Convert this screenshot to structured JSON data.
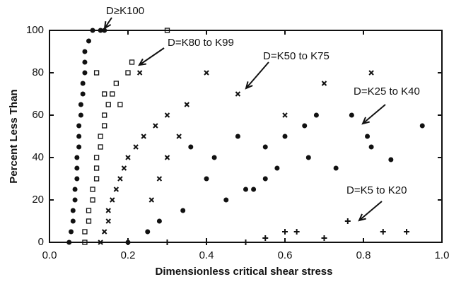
{
  "chart_data": {
    "type": "scatter",
    "xlabel": "Dimensionless critical shear stress",
    "ylabel": "Percent Less Than",
    "xlim": [
      0,
      1
    ],
    "ylim": [
      0,
      100
    ],
    "xticks": [
      {
        "value": 0,
        "label": "0.0"
      },
      {
        "value": 0.2,
        "label": "0.2"
      },
      {
        "value": 0.4,
        "label": "0.4"
      },
      {
        "value": 0.6,
        "label": "0.6"
      },
      {
        "value": 0.8,
        "label": "0.8"
      },
      {
        "value": 1,
        "label": "1.0"
      }
    ],
    "yticks": [
      0,
      20,
      40,
      60,
      80,
      100
    ],
    "grid": false,
    "series": [
      {
        "name": "D≥K100",
        "marker": "circle",
        "color": "#111",
        "x": [
          0.05,
          0.055,
          0.06,
          0.06,
          0.065,
          0.065,
          0.07,
          0.07,
          0.07,
          0.075,
          0.075,
          0.075,
          0.08,
          0.08,
          0.085,
          0.085,
          0.09,
          0.09,
          0.09,
          0.1,
          0.11,
          0.13,
          0.14
        ],
        "values": [
          0,
          5,
          10,
          15,
          20,
          25,
          30,
          35,
          40,
          45,
          50,
          55,
          60,
          65,
          70,
          75,
          80,
          85,
          90,
          95,
          100,
          100,
          100
        ]
      },
      {
        "name": "D=K80 to K99",
        "marker": "square",
        "color": "#111",
        "x": [
          0.09,
          0.09,
          0.1,
          0.1,
          0.11,
          0.11,
          0.12,
          0.12,
          0.12,
          0.13,
          0.13,
          0.14,
          0.14,
          0.15,
          0.16,
          0.17,
          0.2,
          0.21,
          0.3,
          0.12,
          0.14,
          0.18
        ],
        "values": [
          0,
          5,
          10,
          15,
          20,
          25,
          30,
          35,
          40,
          45,
          50,
          55,
          60,
          65,
          70,
          75,
          80,
          85,
          100,
          80,
          70,
          65
        ]
      },
      {
        "name": "D=K50 to K75",
        "marker": "x",
        "color": "#111",
        "x": [
          0.13,
          0.14,
          0.15,
          0.15,
          0.16,
          0.17,
          0.18,
          0.19,
          0.2,
          0.22,
          0.24,
          0.27,
          0.3,
          0.35,
          0.48,
          0.4,
          0.82,
          0.7,
          0.6,
          0.26,
          0.28,
          0.3,
          0.33,
          0.23
        ],
        "values": [
          0,
          5,
          10,
          15,
          20,
          25,
          30,
          35,
          40,
          45,
          50,
          55,
          60,
          65,
          70,
          80,
          80,
          75,
          60,
          20,
          30,
          40,
          50,
          80
        ]
      },
      {
        "name": "D=K25 to K40",
        "marker": "circle",
        "color": "#111",
        "x": [
          0.2,
          0.25,
          0.28,
          0.34,
          0.45,
          0.5,
          0.55,
          0.58,
          0.42,
          0.55,
          0.6,
          0.65,
          0.68,
          0.66,
          0.73,
          0.82,
          0.95,
          0.77,
          0.81,
          0.87,
          0.36,
          0.4,
          0.48,
          0.52
        ],
        "values": [
          0,
          5,
          10,
          15,
          20,
          25,
          30,
          35,
          40,
          45,
          50,
          55,
          60,
          40,
          35,
          45,
          55,
          60,
          50,
          39,
          45,
          30,
          50,
          25
        ]
      },
      {
        "name": "D=K5 to K20",
        "marker": "plus",
        "color": "#111",
        "x": [
          0.2,
          0.3,
          0.4,
          0.5,
          0.55,
          0.6,
          0.63,
          0.7,
          0.76,
          0.85,
          0.91
        ],
        "values": [
          0,
          0,
          0,
          0,
          2,
          5,
          5,
          2,
          10,
          5,
          5
        ]
      }
    ]
  }
}
